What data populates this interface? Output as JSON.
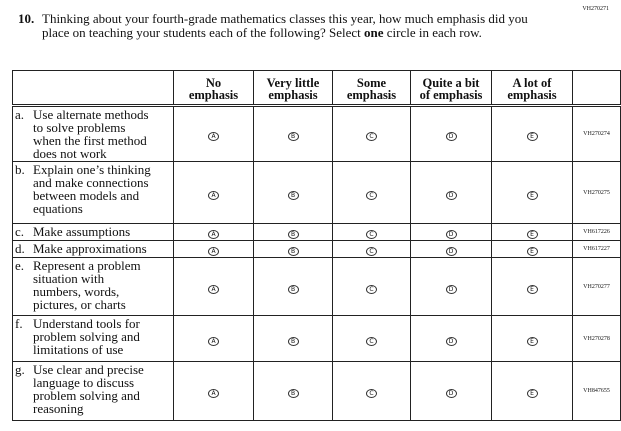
{
  "question": {
    "id": "VH270271",
    "number": "10.",
    "text_before": "Thinking about your fourth-grade mathematics classes this year, how much emphasis did you place on teaching your students each of the following? Select ",
    "emphasis": "one",
    "text_after": " circle in each row."
  },
  "table": {
    "columns": [
      [
        "No",
        "emphasis"
      ],
      [
        "Very little",
        "emphasis"
      ],
      [
        "Some",
        "emphasis"
      ],
      [
        "Quite a bit",
        "of emphasis"
      ],
      [
        "A lot of",
        "emphasis"
      ]
    ],
    "bubbles": [
      "A",
      "B",
      "C",
      "D",
      "E"
    ],
    "rows": [
      {
        "letter": "a.",
        "lines": [
          "Use alternate methods",
          "to solve problems",
          "when the first method",
          "does not work"
        ],
        "id": "VH270274"
      },
      {
        "letter": "b.",
        "lines": [
          "Explain one’s thinking",
          "and make connections",
          "between models and",
          "equations"
        ],
        "id": "VH270275"
      },
      {
        "letter": "c.",
        "lines": [
          "Make assumptions"
        ],
        "id": "VH617226"
      },
      {
        "letter": "d.",
        "lines": [
          "Make approximations"
        ],
        "id": "VH617227"
      },
      {
        "letter": "e.",
        "lines": [
          "Represent a problem",
          "situation with",
          "numbers, words,",
          "pictures, or charts"
        ],
        "id": "VH270277"
      },
      {
        "letter": "f.",
        "lines": [
          "Understand tools for",
          "problem solving and",
          "limitations of use"
        ],
        "id": "VH270278"
      },
      {
        "letter": "g.",
        "lines": [
          "Use clear and precise",
          "language to discuss",
          "problem solving and",
          "reasoning"
        ],
        "id": "VH847655"
      }
    ]
  }
}
